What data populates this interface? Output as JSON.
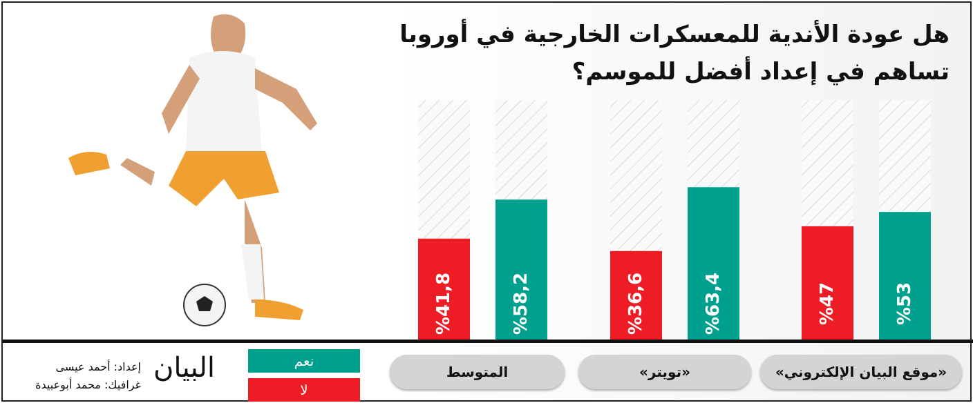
{
  "chart_data": {
    "type": "bar",
    "title": [
      "هل عودة الأندية للمعسكرات الخارجية في أوروبا",
      "تساهم في إعداد أفضل للموسم؟"
    ],
    "categories": [
      "«موقع البيان الإلكتروني»",
      "«تويتر»",
      "المتوسط"
    ],
    "series": [
      {
        "name": "نعم",
        "color": "#00a08e",
        "values": [
          53,
          63.4,
          58.2
        ],
        "labels": [
          "%53",
          "%63,4",
          "%58,2"
        ]
      },
      {
        "name": "لا",
        "color": "#ee1c25",
        "values": [
          47,
          36.6,
          41.8
        ],
        "labels": [
          "%47",
          "%36,6",
          "%41,8"
        ]
      }
    ],
    "ylim": [
      0,
      100
    ],
    "legend": "bottom-left",
    "grid": false
  },
  "credits": {
    "prepared": "إعداد: أحمد عيسى",
    "graphics": "غرافيك: محمد أبوعبيدة"
  },
  "logo": "البيان"
}
